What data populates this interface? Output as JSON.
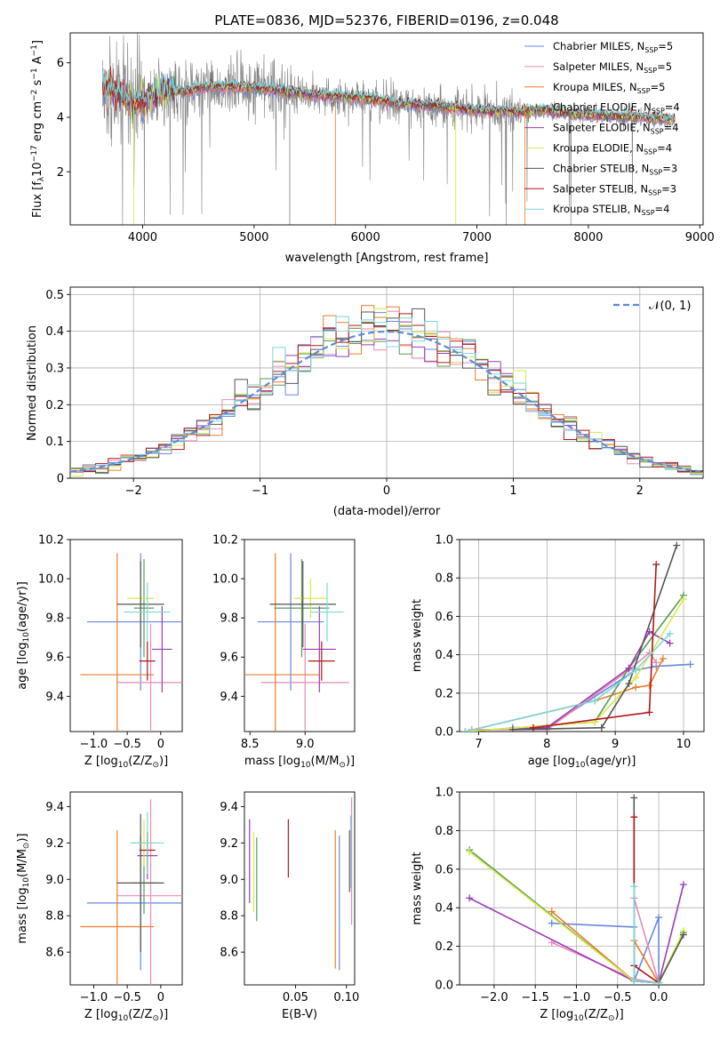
{
  "chart_data": [
    {
      "id": "spectrum",
      "type": "line",
      "title": "PLATE=0836, MJD=52376, FIBERID=0196, z=0.048",
      "xlabel": "wavelength [Angstrom, rest frame]",
      "ylabel_main": "Flux [f",
      "ylabel_sub": "λ",
      "ylabel_rest": "10",
      "ylabel_exp": "−17",
      "ylabel_units": " erg cm",
      "xlim": [
        3350,
        9030
      ],
      "ylim": [
        0.05,
        7.1
      ],
      "xticks": [
        4000,
        5000,
        6000,
        7000,
        8000,
        9000
      ],
      "yticks": [
        2,
        4,
        6
      ],
      "grid": false,
      "legend_position": "upper-right",
      "legend": [
        {
          "model": "Chabrier MILES",
          "n": "5",
          "color": "#6688dd"
        },
        {
          "model": "Salpeter MILES",
          "n": "5",
          "color": "#e88ab8"
        },
        {
          "model": "Kroupa MILES",
          "n": "5",
          "color": "#e87d2a"
        },
        {
          "model": "Chabrier ELODIE",
          "n": "4",
          "color": "#5a9a5a"
        },
        {
          "model": "Salpeter ELODIE",
          "n": "4",
          "color": "#9b3bb5"
        },
        {
          "model": "Kroupa ELODIE",
          "n": "4",
          "color": "#d8e84a"
        },
        {
          "model": "Chabrier STELIB",
          "n": "3",
          "color": "#555555"
        },
        {
          "model": "Salpeter STELIB",
          "n": "3",
          "color": "#b01818"
        },
        {
          "model": "Kroupa STELIB",
          "n": "4",
          "color": "#78d8dc"
        }
      ],
      "legend_nssp_prefix": "N",
      "legend_nssp_sub": "SSP",
      "continuum": [
        [
          3640,
          5.2
        ],
        [
          3700,
          5.0
        ],
        [
          3800,
          4.8
        ],
        [
          3900,
          4.6
        ],
        [
          4000,
          4.55
        ],
        [
          4100,
          4.8
        ],
        [
          4200,
          5.0
        ],
        [
          4400,
          4.95
        ],
        [
          4600,
          5.15
        ],
        [
          4860,
          5.1
        ],
        [
          5000,
          5.1
        ],
        [
          5200,
          5.0
        ],
        [
          5500,
          4.85
        ],
        [
          5800,
          4.75
        ],
        [
          6000,
          4.7
        ],
        [
          6300,
          4.5
        ],
        [
          6500,
          4.45
        ],
        [
          6800,
          4.35
        ],
        [
          7000,
          4.25
        ],
        [
          7300,
          4.2
        ],
        [
          7600,
          4.25
        ],
        [
          7900,
          4.1
        ],
        [
          8200,
          4.05
        ],
        [
          8500,
          4.0
        ],
        [
          8780,
          3.9
        ]
      ],
      "data_color": "#808080"
    },
    {
      "id": "residuals",
      "type": "bar",
      "xlabel": "(data-model)/error",
      "ylabel": "Normed distribution",
      "xlim": [
        -2.5,
        2.5
      ],
      "ylim": [
        0,
        0.52
      ],
      "xticks": [
        -2,
        -1,
        0,
        1,
        2
      ],
      "yticks": [
        0.0,
        0.1,
        0.2,
        0.3,
        0.4,
        0.5
      ],
      "grid": true,
      "legend_label": "𝒩(0, 1)",
      "legend_position": "upper-right",
      "gauss_color": "#5b8bd6",
      "bin_width": 0.1
    },
    {
      "id": "z-age",
      "type": "scatter",
      "xlabel_main": "Z [log",
      "xlabel_sub": "10",
      "xlabel_rest": "(Z/Z",
      "xlabel_sun": "⊙",
      "xlabel_end": ")]",
      "ylabel_main": "age  [log",
      "ylabel_sub": "10",
      "ylabel_rest": "(age/yr)]",
      "xlim": [
        -1.35,
        0.32
      ],
      "ylim": [
        9.22,
        10.2
      ],
      "xticks": [
        -1,
        -0.5,
        0
      ],
      "xtick_labels": [
        "−1.0",
        "−0.5",
        "0"
      ],
      "yticks": [
        9.4,
        9.6,
        9.8,
        10.0,
        10.2
      ],
      "ytick_labels": [
        "9.4",
        "9.6",
        "9.8",
        "10.0",
        "10.2"
      ],
      "grid": false,
      "points": [
        {
          "x": -0.3,
          "xerr": 0.8,
          "y": 9.78,
          "yerr": 0.35,
          "color": "#6688dd"
        },
        {
          "x": -0.15,
          "xerr": 0.5,
          "y": 9.47,
          "yerr": 0.3,
          "color": "#e88ab8"
        },
        {
          "x": -0.65,
          "xerr": 0.55,
          "y": 9.51,
          "yerr": 0.62,
          "color": "#e87d2a"
        },
        {
          "x": -0.25,
          "xerr": 0.15,
          "y": 9.85,
          "yerr": 0.25,
          "color": "#5a9a5a"
        },
        {
          "x": 0.02,
          "xerr": 0.15,
          "y": 9.64,
          "yerr": 0.22,
          "color": "#9b3bb5"
        },
        {
          "x": -0.3,
          "xerr": 0.2,
          "y": 9.9,
          "yerr": 0.1,
          "color": "#d8e84a"
        },
        {
          "x": -0.3,
          "xerr": 0.35,
          "y": 9.87,
          "yerr": 0.22,
          "color": "#555555"
        },
        {
          "x": -0.2,
          "xerr": 0.12,
          "y": 9.58,
          "yerr": 0.1,
          "color": "#b01818"
        },
        {
          "x": -0.2,
          "xerr": 0.35,
          "y": 9.83,
          "yerr": 0.15,
          "color": "#78d8dc"
        }
      ]
    },
    {
      "id": "mass-age",
      "type": "scatter",
      "xlabel_main": "mass [log",
      "xlabel_sub": "10",
      "xlabel_rest": "(M/M",
      "xlabel_sun": "⊙",
      "xlabel_end": ")]",
      "xlim": [
        8.45,
        9.45
      ],
      "ylim": [
        9.22,
        10.2
      ],
      "xticks": [
        8.5,
        9.0
      ],
      "xtick_labels": [
        "8.5",
        "9.0"
      ],
      "yticks": [
        9.4,
        9.6,
        9.8,
        10.0,
        10.2
      ],
      "ytick_labels": [
        "9.4",
        "9.6",
        "9.8",
        "10.0",
        "10.2"
      ],
      "grid": false,
      "points": [
        {
          "x": 8.87,
          "xerr": 0.3,
          "y": 9.78,
          "yerr": 0.35,
          "color": "#6688dd"
        },
        {
          "x": 9.0,
          "xerr": 0.4,
          "y": 9.47,
          "yerr": 0.3,
          "color": "#e88ab8"
        },
        {
          "x": 8.73,
          "xerr": 0.4,
          "y": 9.51,
          "yerr": 0.62,
          "color": "#e87d2a"
        },
        {
          "x": 8.97,
          "xerr": 0.25,
          "y": 9.85,
          "yerr": 0.25,
          "color": "#5a9a5a"
        },
        {
          "x": 9.13,
          "xerr": 0.15,
          "y": 9.64,
          "yerr": 0.22,
          "color": "#9b3bb5"
        },
        {
          "x": 9.05,
          "xerr": 0.15,
          "y": 9.9,
          "yerr": 0.1,
          "color": "#d8e84a"
        },
        {
          "x": 8.98,
          "xerr": 0.3,
          "y": 9.87,
          "yerr": 0.22,
          "color": "#555555"
        },
        {
          "x": 9.15,
          "xerr": 0.12,
          "y": 9.58,
          "yerr": 0.1,
          "color": "#b01818"
        },
        {
          "x": 9.2,
          "xerr": 0.15,
          "y": 9.83,
          "yerr": 0.15,
          "color": "#78d8dc"
        }
      ]
    },
    {
      "id": "age-weight",
      "type": "line",
      "xlabel_main": "age  [log",
      "xlabel_sub": "10",
      "xlabel_rest": "(age/yr)]",
      "ylabel": "mass weight",
      "xlim": [
        6.72,
        10.3
      ],
      "ylim": [
        0,
        1.0
      ],
      "xticks": [
        7,
        8,
        9,
        10
      ],
      "xtick_labels": [
        "7",
        "8",
        "9",
        "10"
      ],
      "yticks": [
        0.0,
        0.2,
        0.4,
        0.6,
        0.8,
        1.0
      ],
      "ytick_labels": [
        "0.0",
        "0.2",
        "0.4",
        "0.6",
        "0.8",
        "1.0"
      ],
      "grid": true,
      "series": [
        {
          "color": "#6688dd",
          "points": [
            [
              7.5,
              0.02
            ],
            [
              8.0,
              0.02
            ],
            [
              9.3,
              0.32
            ],
            [
              9.6,
              0.34
            ],
            [
              10.1,
              0.35
            ]
          ]
        },
        {
          "color": "#e88ab8",
          "points": [
            [
              6.9,
              0.01
            ],
            [
              8.0,
              0.01
            ],
            [
              9.2,
              0.32
            ],
            [
              9.5,
              0.41
            ],
            [
              9.6,
              0.36
            ]
          ]
        },
        {
          "color": "#e87d2a",
          "points": [
            [
              6.8,
              0.0
            ],
            [
              8.7,
              0.16
            ],
            [
              9.3,
              0.23
            ],
            [
              9.5,
              0.24
            ],
            [
              9.7,
              0.38
            ]
          ]
        },
        {
          "color": "#5a9a5a",
          "points": [
            [
              6.8,
              0.0
            ],
            [
              8.7,
              0.05
            ],
            [
              9.2,
              0.33
            ],
            [
              10.0,
              0.71
            ]
          ]
        },
        {
          "color": "#9b3bb5",
          "points": [
            [
              7.5,
              0.01
            ],
            [
              8.0,
              0.02
            ],
            [
              9.2,
              0.33
            ],
            [
              9.5,
              0.52
            ],
            [
              9.8,
              0.46
            ]
          ]
        },
        {
          "color": "#d8e84a",
          "points": [
            [
              6.8,
              0.0
            ],
            [
              8.7,
              0.05
            ],
            [
              9.3,
              0.28
            ],
            [
              10.0,
              0.69
            ]
          ]
        },
        {
          "color": "#555555",
          "points": [
            [
              7.5,
              0.01
            ],
            [
              8.8,
              0.02
            ],
            [
              9.2,
              0.25
            ],
            [
              9.9,
              0.97
            ]
          ]
        },
        {
          "color": "#b01818",
          "points": [
            [
              7.8,
              0.02
            ],
            [
              9.5,
              0.1
            ],
            [
              9.6,
              0.87
            ]
          ]
        },
        {
          "color": "#78d8dc",
          "points": [
            [
              6.8,
              0.0
            ],
            [
              8.7,
              0.16
            ],
            [
              9.3,
              0.32
            ],
            [
              9.8,
              0.51
            ]
          ]
        }
      ]
    },
    {
      "id": "z-mass",
      "type": "scatter",
      "xlabel_main": "Z [log",
      "xlabel_sub": "10",
      "xlabel_rest": "(Z/Z",
      "xlabel_sun": "⊙",
      "xlabel_end": ")]",
      "ylabel_main": "mass [log",
      "ylabel_sub": "10",
      "ylabel_rest": "(M/M",
      "ylabel_sun": "⊙",
      "ylabel_end": ")]",
      "xlim": [
        -1.35,
        0.32
      ],
      "ylim": [
        8.42,
        9.48
      ],
      "xticks": [
        -1,
        -0.5,
        0
      ],
      "xtick_labels": [
        "−1.0",
        "−0.5",
        "0"
      ],
      "yticks": [
        8.6,
        8.8,
        9.0,
        9.2,
        9.4
      ],
      "ytick_labels": [
        "8.6",
        "8.8",
        "9.0",
        "9.2",
        "9.4"
      ],
      "grid": false,
      "points": [
        {
          "x": -0.3,
          "xerr": 0.8,
          "y": 8.87,
          "yerr": 0.37,
          "color": "#6688dd"
        },
        {
          "x": -0.15,
          "xerr": 0.5,
          "y": 8.91,
          "yerr": 0.53,
          "color": "#e88ab8"
        },
        {
          "x": -0.65,
          "xerr": 0.55,
          "y": 8.74,
          "yerr": 0.53,
          "color": "#e87d2a"
        },
        {
          "x": -0.25,
          "xerr": 0.2,
          "y": 8.98,
          "yerr": 0.17,
          "color": "#5a9a5a"
        },
        {
          "x": -0.2,
          "xerr": 0.15,
          "y": 9.13,
          "yerr": 0.13,
          "color": "#9b3bb5"
        },
        {
          "x": -0.25,
          "xerr": 0.2,
          "y": 9.2,
          "yerr": 0.13,
          "color": "#d8e84a"
        },
        {
          "x": -0.3,
          "xerr": 0.35,
          "y": 8.98,
          "yerr": 0.38,
          "color": "#555555"
        },
        {
          "x": -0.2,
          "xerr": 0.12,
          "y": 9.16,
          "yerr": 0.1,
          "color": "#b01818"
        },
        {
          "x": -0.2,
          "xerr": 0.25,
          "y": 9.2,
          "yerr": 0.17,
          "color": "#78d8dc"
        }
      ]
    },
    {
      "id": "ebv-mass",
      "type": "scatter",
      "xlabel": "E(B-V)",
      "xlim": [
        0.0,
        0.108
      ],
      "ylim": [
        8.42,
        9.48
      ],
      "xticks": [
        0.05,
        0.1
      ],
      "xtick_labels": [
        "0.05",
        "0.10"
      ],
      "yticks": [
        8.6,
        8.8,
        9.0,
        9.2,
        9.4
      ],
      "ytick_labels": [
        "8.6",
        "8.8",
        "9.0",
        "9.2",
        "9.4"
      ],
      "grid": false,
      "points": [
        {
          "x": 0.093,
          "y": 8.87,
          "yerr": 0.37,
          "color": "#6688dd"
        },
        {
          "x": 0.105,
          "y": 9.1,
          "yerr": 0.35,
          "color": "#e88ab8"
        },
        {
          "x": 0.089,
          "y": 8.89,
          "yerr": 0.38,
          "color": "#e87d2a"
        },
        {
          "x": 0.012,
          "y": 9.0,
          "yerr": 0.23,
          "color": "#5a9a5a"
        },
        {
          "x": 0.005,
          "y": 9.1,
          "yerr": 0.23,
          "color": "#9b3bb5"
        },
        {
          "x": 0.009,
          "y": 9.04,
          "yerr": 0.22,
          "color": "#d8e84a"
        },
        {
          "x": 0.103,
          "y": 9.1,
          "yerr": 0.17,
          "color": "#555555"
        },
        {
          "x": 0.043,
          "y": 9.17,
          "yerr": 0.16,
          "color": "#b01818"
        },
        {
          "x": 0.104,
          "y": 9.15,
          "yerr": 0.2,
          "color": "#78d8dc"
        }
      ]
    },
    {
      "id": "z-weight",
      "type": "line",
      "xlabel_main": "Z [log",
      "xlabel_sub": "10",
      "xlabel_rest": "(Z/Z",
      "xlabel_sun": "⊙",
      "xlabel_end": ")]",
      "ylabel": "mass weight",
      "xlim": [
        -2.42,
        0.55
      ],
      "ylim": [
        0,
        1.0
      ],
      "xticks": [
        -2.0,
        -1.5,
        -1.0,
        -0.5,
        0.0
      ],
      "xtick_labels": [
        "−2.0",
        "−1.5",
        "−1.0",
        "−0.5",
        "0.0"
      ],
      "yticks": [
        0.0,
        0.2,
        0.4,
        0.6,
        0.8,
        1.0
      ],
      "ytick_labels": [
        "0.0",
        "0.2",
        "0.4",
        "0.6",
        "0.8",
        "1.0"
      ],
      "grid": true,
      "series": [
        {
          "color": "#6688dd",
          "points": [
            [
              -1.3,
              0.32
            ],
            [
              -0.3,
              0.3
            ],
            [
              -0.3,
              0.02
            ],
            [
              0.0,
              0.35
            ],
            [
              0.0,
              0.01
            ]
          ]
        },
        {
          "color": "#e88ab8",
          "points": [
            [
              -1.3,
              0.22
            ],
            [
              -0.3,
              0.03
            ],
            [
              0.0,
              0.01
            ],
            [
              -0.3,
              0.45
            ]
          ]
        },
        {
          "color": "#e87d2a",
          "points": [
            [
              -1.3,
              0.38
            ],
            [
              -0.3,
              0.02
            ],
            [
              -0.3,
              0.23
            ],
            [
              0.0,
              0.01
            ]
          ]
        },
        {
          "color": "#5a9a5a",
          "points": [
            [
              -2.3,
              0.7
            ],
            [
              -0.3,
              0.02
            ],
            [
              0.0,
              0.01
            ],
            [
              0.3,
              0.27
            ]
          ]
        },
        {
          "color": "#9b3bb5",
          "points": [
            [
              -2.3,
              0.45
            ],
            [
              -0.3,
              0.02
            ],
            [
              0.0,
              0.01
            ],
            [
              0.3,
              0.52
            ]
          ]
        },
        {
          "color": "#d8e84a",
          "points": [
            [
              -2.3,
              0.69
            ],
            [
              -0.3,
              0.02
            ],
            [
              0.0,
              0.01
            ],
            [
              0.3,
              0.28
            ]
          ]
        },
        {
          "color": "#555555",
          "points": [
            [
              -0.3,
              0.97
            ],
            [
              -0.3,
              0.02
            ],
            [
              0.0,
              0.01
            ],
            [
              0.3,
              0.26
            ]
          ]
        },
        {
          "color": "#b01818",
          "points": [
            [
              -0.3,
              0.87
            ],
            [
              -0.3,
              0.1
            ],
            [
              0.0,
              0.01
            ]
          ]
        },
        {
          "color": "#78d8dc",
          "points": [
            [
              -0.3,
              0.51
            ],
            [
              -0.3,
              0.02
            ],
            [
              0.0,
              0.01
            ]
          ]
        }
      ]
    }
  ]
}
